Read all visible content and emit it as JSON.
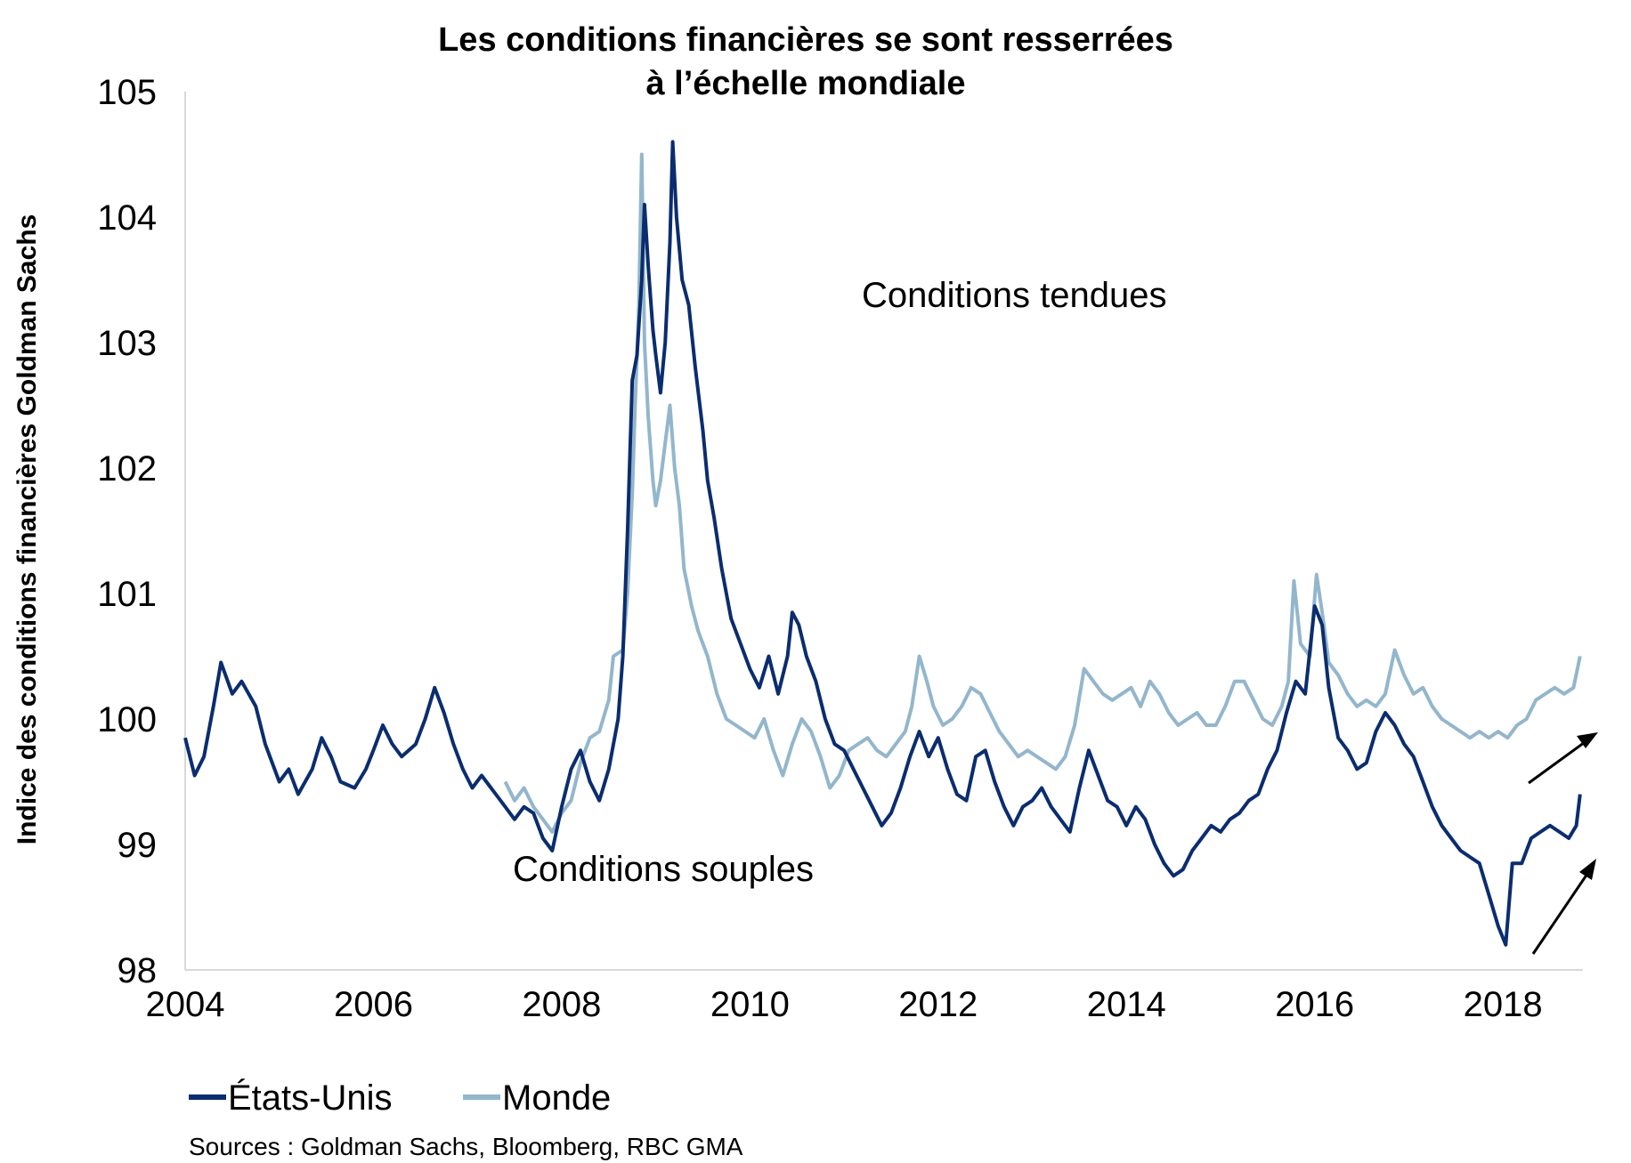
{
  "chart_data": {
    "type": "line",
    "title": "Les conditions financières se sont resserrées",
    "title_line2": "à l’échelle mondiale",
    "xlabel": "",
    "ylabel": "Indice des conditions financières Goldman Sachs",
    "xlim": [
      2004,
      2018.85
    ],
    "ylim": [
      98,
      105
    ],
    "x_ticks": [
      "2004",
      "2006",
      "2008",
      "2010",
      "2012",
      "2014",
      "2016",
      "2018"
    ],
    "y_ticks": [
      "98",
      "99",
      "100",
      "101",
      "102",
      "103",
      "104",
      "105"
    ],
    "grid": false,
    "legend_position": "bottom-left",
    "annotations": {
      "tight": "Conditions tendues",
      "loose": "Conditions souples"
    },
    "colors": {
      "us": "#0b2d6f",
      "world": "#93b6cc",
      "arrow": "#000000"
    },
    "series": [
      {
        "name": "États-Unis",
        "color": "#0b2d6f",
        "points": [
          [
            2004.0,
            99.85
          ],
          [
            2004.1,
            99.55
          ],
          [
            2004.2,
            99.7
          ],
          [
            2004.3,
            100.1
          ],
          [
            2004.38,
            100.45
          ],
          [
            2004.5,
            100.2
          ],
          [
            2004.6,
            100.3
          ],
          [
            2004.75,
            100.1
          ],
          [
            2004.85,
            99.8
          ],
          [
            2005.0,
            99.5
          ],
          [
            2005.1,
            99.6
          ],
          [
            2005.2,
            99.4
          ],
          [
            2005.35,
            99.6
          ],
          [
            2005.45,
            99.85
          ],
          [
            2005.55,
            99.7
          ],
          [
            2005.65,
            99.5
          ],
          [
            2005.8,
            99.45
          ],
          [
            2005.92,
            99.6
          ],
          [
            2006.0,
            99.75
          ],
          [
            2006.1,
            99.95
          ],
          [
            2006.2,
            99.8
          ],
          [
            2006.3,
            99.7
          ],
          [
            2006.45,
            99.8
          ],
          [
            2006.55,
            100.0
          ],
          [
            2006.65,
            100.25
          ],
          [
            2006.75,
            100.05
          ],
          [
            2006.85,
            99.8
          ],
          [
            2006.95,
            99.6
          ],
          [
            2007.05,
            99.45
          ],
          [
            2007.15,
            99.55
          ],
          [
            2007.3,
            99.4
          ],
          [
            2007.4,
            99.3
          ],
          [
            2007.5,
            99.2
          ],
          [
            2007.6,
            99.3
          ],
          [
            2007.7,
            99.25
          ],
          [
            2007.8,
            99.05
          ],
          [
            2007.9,
            98.95
          ],
          [
            2008.0,
            99.3
          ],
          [
            2008.1,
            99.6
          ],
          [
            2008.2,
            99.75
          ],
          [
            2008.3,
            99.5
          ],
          [
            2008.4,
            99.35
          ],
          [
            2008.5,
            99.6
          ],
          [
            2008.6,
            100.0
          ],
          [
            2008.65,
            100.5
          ],
          [
            2008.7,
            101.5
          ],
          [
            2008.75,
            102.7
          ],
          [
            2008.8,
            102.9
          ],
          [
            2008.85,
            103.5
          ],
          [
            2008.88,
            104.1
          ],
          [
            2008.92,
            103.6
          ],
          [
            2008.97,
            103.1
          ],
          [
            2009.0,
            102.9
          ],
          [
            2009.05,
            102.6
          ],
          [
            2009.1,
            103.0
          ],
          [
            2009.15,
            103.8
          ],
          [
            2009.18,
            104.6
          ],
          [
            2009.22,
            104.0
          ],
          [
            2009.28,
            103.5
          ],
          [
            2009.35,
            103.3
          ],
          [
            2009.42,
            102.8
          ],
          [
            2009.5,
            102.3
          ],
          [
            2009.55,
            101.9
          ],
          [
            2009.62,
            101.6
          ],
          [
            2009.7,
            101.2
          ],
          [
            2009.8,
            100.8
          ],
          [
            2009.9,
            100.6
          ],
          [
            2010.0,
            100.4
          ],
          [
            2010.1,
            100.25
          ],
          [
            2010.2,
            100.5
          ],
          [
            2010.3,
            100.2
          ],
          [
            2010.4,
            100.5
          ],
          [
            2010.45,
            100.85
          ],
          [
            2010.52,
            100.75
          ],
          [
            2010.6,
            100.5
          ],
          [
            2010.7,
            100.3
          ],
          [
            2010.8,
            100.0
          ],
          [
            2010.9,
            99.8
          ],
          [
            2011.0,
            99.75
          ],
          [
            2011.1,
            99.6
          ],
          [
            2011.2,
            99.45
          ],
          [
            2011.3,
            99.3
          ],
          [
            2011.4,
            99.15
          ],
          [
            2011.5,
            99.25
          ],
          [
            2011.6,
            99.45
          ],
          [
            2011.7,
            99.7
          ],
          [
            2011.8,
            99.9
          ],
          [
            2011.9,
            99.7
          ],
          [
            2012.0,
            99.85
          ],
          [
            2012.1,
            99.6
          ],
          [
            2012.2,
            99.4
          ],
          [
            2012.3,
            99.35
          ],
          [
            2012.4,
            99.7
          ],
          [
            2012.5,
            99.75
          ],
          [
            2012.6,
            99.5
          ],
          [
            2012.7,
            99.3
          ],
          [
            2012.8,
            99.15
          ],
          [
            2012.9,
            99.3
          ],
          [
            2013.0,
            99.35
          ],
          [
            2013.1,
            99.45
          ],
          [
            2013.2,
            99.3
          ],
          [
            2013.3,
            99.2
          ],
          [
            2013.4,
            99.1
          ],
          [
            2013.5,
            99.45
          ],
          [
            2013.6,
            99.75
          ],
          [
            2013.7,
            99.55
          ],
          [
            2013.8,
            99.35
          ],
          [
            2013.9,
            99.3
          ],
          [
            2014.0,
            99.15
          ],
          [
            2014.1,
            99.3
          ],
          [
            2014.2,
            99.2
          ],
          [
            2014.3,
            99.0
          ],
          [
            2014.4,
            98.85
          ],
          [
            2014.5,
            98.75
          ],
          [
            2014.6,
            98.8
          ],
          [
            2014.7,
            98.95
          ],
          [
            2014.8,
            99.05
          ],
          [
            2014.9,
            99.15
          ],
          [
            2015.0,
            99.1
          ],
          [
            2015.1,
            99.2
          ],
          [
            2015.2,
            99.25
          ],
          [
            2015.3,
            99.35
          ],
          [
            2015.4,
            99.4
          ],
          [
            2015.5,
            99.6
          ],
          [
            2015.6,
            99.75
          ],
          [
            2015.7,
            100.05
          ],
          [
            2015.8,
            100.3
          ],
          [
            2015.9,
            100.2
          ],
          [
            2016.0,
            100.9
          ],
          [
            2016.08,
            100.75
          ],
          [
            2016.15,
            100.25
          ],
          [
            2016.25,
            99.85
          ],
          [
            2016.35,
            99.75
          ],
          [
            2016.45,
            99.6
          ],
          [
            2016.55,
            99.65
          ],
          [
            2016.65,
            99.9
          ],
          [
            2016.75,
            100.05
          ],
          [
            2016.85,
            99.95
          ],
          [
            2016.95,
            99.8
          ],
          [
            2017.05,
            99.7
          ],
          [
            2017.15,
            99.5
          ],
          [
            2017.25,
            99.3
          ],
          [
            2017.35,
            99.15
          ],
          [
            2017.45,
            99.05
          ],
          [
            2017.55,
            98.95
          ],
          [
            2017.65,
            98.9
          ],
          [
            2017.75,
            98.85
          ],
          [
            2017.85,
            98.6
          ],
          [
            2017.95,
            98.35
          ],
          [
            2018.03,
            98.2
          ],
          [
            2018.1,
            98.85
          ],
          [
            2018.2,
            98.85
          ],
          [
            2018.3,
            99.05
          ],
          [
            2018.4,
            99.1
          ],
          [
            2018.5,
            99.15
          ],
          [
            2018.6,
            99.1
          ],
          [
            2018.7,
            99.05
          ],
          [
            2018.78,
            99.15
          ],
          [
            2018.82,
            99.4
          ]
        ]
      },
      {
        "name": "Monde",
        "color": "#93b6cc",
        "points": [
          [
            2007.4,
            99.5
          ],
          [
            2007.5,
            99.35
          ],
          [
            2007.6,
            99.45
          ],
          [
            2007.7,
            99.3
          ],
          [
            2007.8,
            99.2
          ],
          [
            2007.9,
            99.1
          ],
          [
            2008.0,
            99.25
          ],
          [
            2008.1,
            99.35
          ],
          [
            2008.2,
            99.65
          ],
          [
            2008.3,
            99.85
          ],
          [
            2008.4,
            99.9
          ],
          [
            2008.5,
            100.15
          ],
          [
            2008.55,
            100.5
          ],
          [
            2008.65,
            100.55
          ],
          [
            2008.7,
            101.0
          ],
          [
            2008.75,
            101.8
          ],
          [
            2008.78,
            102.5
          ],
          [
            2008.82,
            103.3
          ],
          [
            2008.85,
            104.5
          ],
          [
            2008.88,
            103.0
          ],
          [
            2008.92,
            102.4
          ],
          [
            2008.97,
            101.9
          ],
          [
            2009.0,
            101.7
          ],
          [
            2009.05,
            101.9
          ],
          [
            2009.1,
            102.2
          ],
          [
            2009.15,
            102.5
          ],
          [
            2009.2,
            102.0
          ],
          [
            2009.25,
            101.7
          ],
          [
            2009.3,
            101.2
          ],
          [
            2009.38,
            100.9
          ],
          [
            2009.45,
            100.7
          ],
          [
            2009.55,
            100.5
          ],
          [
            2009.65,
            100.2
          ],
          [
            2009.75,
            100.0
          ],
          [
            2009.85,
            99.95
          ],
          [
            2009.95,
            99.9
          ],
          [
            2010.05,
            99.85
          ],
          [
            2010.15,
            100.0
          ],
          [
            2010.25,
            99.75
          ],
          [
            2010.35,
            99.55
          ],
          [
            2010.45,
            99.8
          ],
          [
            2010.55,
            100.0
          ],
          [
            2010.65,
            99.9
          ],
          [
            2010.75,
            99.7
          ],
          [
            2010.85,
            99.45
          ],
          [
            2010.95,
            99.55
          ],
          [
            2011.05,
            99.75
          ],
          [
            2011.15,
            99.8
          ],
          [
            2011.25,
            99.85
          ],
          [
            2011.35,
            99.75
          ],
          [
            2011.45,
            99.7
          ],
          [
            2011.55,
            99.8
          ],
          [
            2011.65,
            99.9
          ],
          [
            2011.72,
            100.1
          ],
          [
            2011.8,
            100.5
          ],
          [
            2011.88,
            100.3
          ],
          [
            2011.95,
            100.1
          ],
          [
            2012.05,
            99.95
          ],
          [
            2012.15,
            100.0
          ],
          [
            2012.25,
            100.1
          ],
          [
            2012.35,
            100.25
          ],
          [
            2012.45,
            100.2
          ],
          [
            2012.55,
            100.05
          ],
          [
            2012.65,
            99.9
          ],
          [
            2012.75,
            99.8
          ],
          [
            2012.85,
            99.7
          ],
          [
            2012.95,
            99.75
          ],
          [
            2013.05,
            99.7
          ],
          [
            2013.15,
            99.65
          ],
          [
            2013.25,
            99.6
          ],
          [
            2013.35,
            99.7
          ],
          [
            2013.45,
            99.95
          ],
          [
            2013.55,
            100.4
          ],
          [
            2013.65,
            100.3
          ],
          [
            2013.75,
            100.2
          ],
          [
            2013.85,
            100.15
          ],
          [
            2013.95,
            100.2
          ],
          [
            2014.05,
            100.25
          ],
          [
            2014.15,
            100.1
          ],
          [
            2014.25,
            100.3
          ],
          [
            2014.35,
            100.2
          ],
          [
            2014.45,
            100.05
          ],
          [
            2014.55,
            99.95
          ],
          [
            2014.65,
            100.0
          ],
          [
            2014.75,
            100.05
          ],
          [
            2014.85,
            99.95
          ],
          [
            2014.95,
            99.95
          ],
          [
            2015.05,
            100.1
          ],
          [
            2015.15,
            100.3
          ],
          [
            2015.25,
            100.3
          ],
          [
            2015.35,
            100.15
          ],
          [
            2015.45,
            100.0
          ],
          [
            2015.55,
            99.95
          ],
          [
            2015.65,
            100.1
          ],
          [
            2015.72,
            100.3
          ],
          [
            2015.78,
            101.1
          ],
          [
            2015.85,
            100.6
          ],
          [
            2015.95,
            100.5
          ],
          [
            2016.02,
            101.15
          ],
          [
            2016.08,
            100.85
          ],
          [
            2016.15,
            100.45
          ],
          [
            2016.25,
            100.35
          ],
          [
            2016.35,
            100.2
          ],
          [
            2016.45,
            100.1
          ],
          [
            2016.55,
            100.15
          ],
          [
            2016.65,
            100.1
          ],
          [
            2016.75,
            100.2
          ],
          [
            2016.85,
            100.55
          ],
          [
            2016.95,
            100.35
          ],
          [
            2017.05,
            100.2
          ],
          [
            2017.15,
            100.25
          ],
          [
            2017.25,
            100.1
          ],
          [
            2017.35,
            100.0
          ],
          [
            2017.45,
            99.95
          ],
          [
            2017.55,
            99.9
          ],
          [
            2017.65,
            99.85
          ],
          [
            2017.75,
            99.9
          ],
          [
            2017.85,
            99.85
          ],
          [
            2017.95,
            99.9
          ],
          [
            2018.05,
            99.85
          ],
          [
            2018.15,
            99.95
          ],
          [
            2018.25,
            100.0
          ],
          [
            2018.35,
            100.15
          ],
          [
            2018.45,
            100.2
          ],
          [
            2018.55,
            100.25
          ],
          [
            2018.65,
            100.2
          ],
          [
            2018.75,
            100.25
          ],
          [
            2018.82,
            100.5
          ]
        ]
      }
    ]
  },
  "legend": {
    "us_label": "États-Unis",
    "world_label": "Monde"
  },
  "source_note": "Sources : Goldman Sachs, Bloomberg, RBC GMA"
}
